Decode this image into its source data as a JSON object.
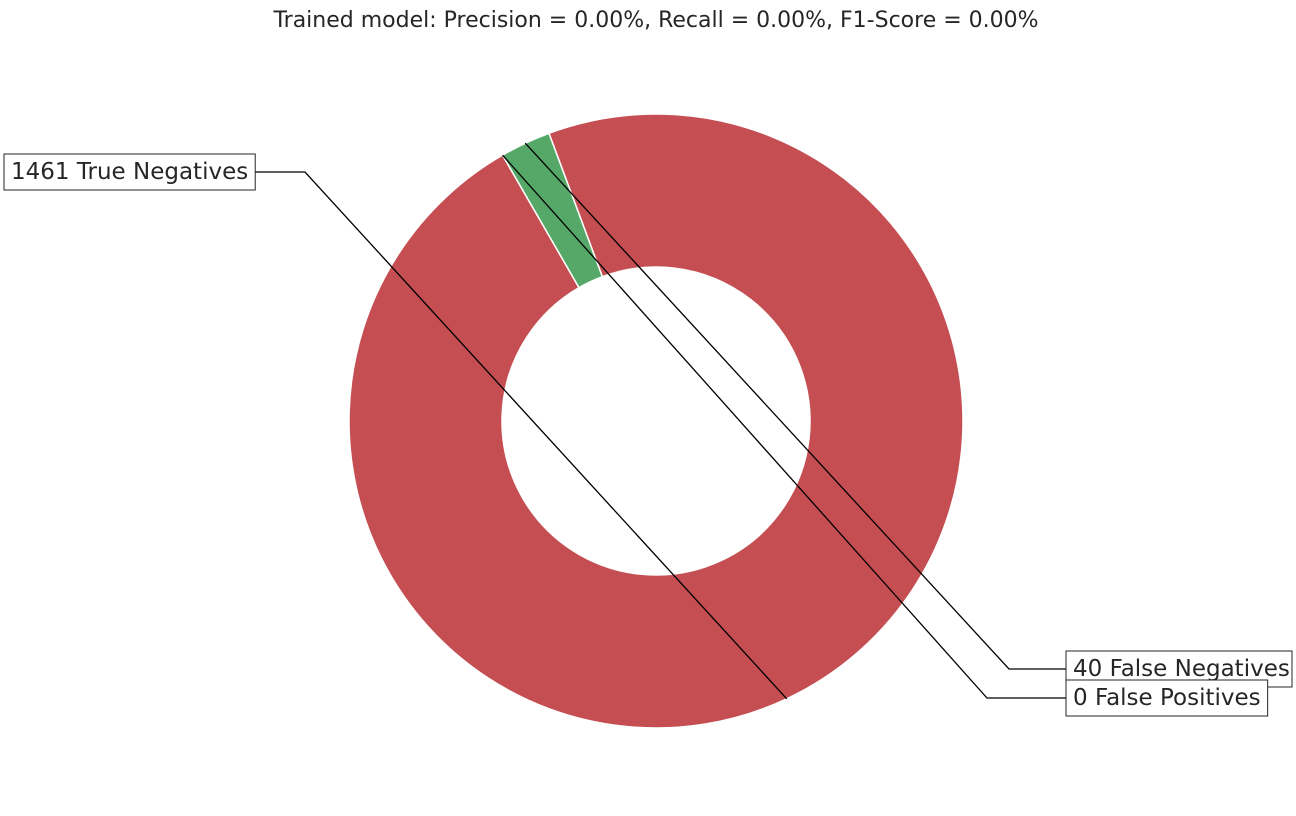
{
  "chart_data": {
    "type": "pie",
    "title": "Trained model: Precision = 0.00%, Recall = 0.00%, F1-Score = 0.00%",
    "categories": [
      "True Negatives",
      "False Negatives",
      "False Positives"
    ],
    "values": [
      1461,
      40,
      0
    ],
    "labels": [
      "1461 True Negatives",
      "40 False Negatives",
      "0 False Positives"
    ],
    "colors": [
      "#c44e52",
      "#55a868",
      "#4c72b0"
    ],
    "donut": true,
    "grid": false
  }
}
